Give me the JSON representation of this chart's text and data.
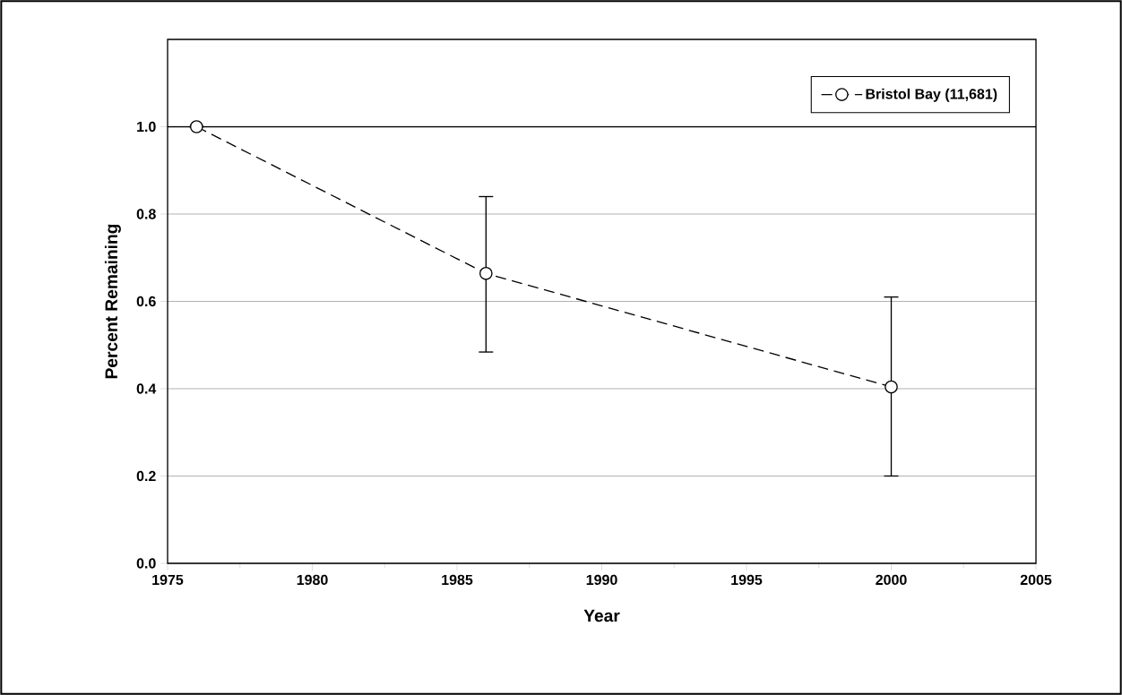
{
  "chart_data": {
    "type": "line",
    "xlabel": "Year",
    "ylabel": "Percent Remaining",
    "x": [
      1976,
      1986,
      2000
    ],
    "series": [
      {
        "name": "Bristol Bay (11,681)",
        "color": "#000000",
        "values": [
          1.0,
          0.664,
          0.404
        ],
        "errors": [
          null,
          [
            0.484,
            0.84
          ],
          [
            0.2,
            0.61
          ]
        ]
      }
    ],
    "xlim": [
      1975,
      2005
    ],
    "xticks": [
      1975,
      1980,
      1985,
      1990,
      1995,
      2000,
      2005
    ],
    "ylim": [
      0,
      1.2
    ],
    "yticks": [
      {
        "value": 0,
        "label": "0.0"
      },
      0.2,
      0.4,
      0.6,
      0.8,
      {
        "value": 1,
        "label": "1.0"
      }
    ],
    "ref_lines": [
      {
        "axis": "y",
        "value": 1.0,
        "color": "#000000"
      }
    ],
    "grid": "y",
    "legend": "top right",
    "marker": "circle",
    "line_style": "dashed"
  }
}
